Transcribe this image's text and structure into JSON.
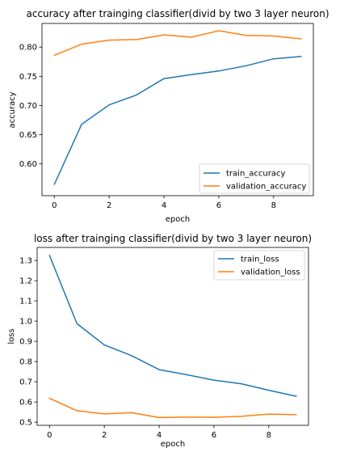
{
  "colors": {
    "series1": "#1f77b4",
    "series2": "#ff7f0e"
  },
  "chart_data": [
    {
      "type": "line",
      "title": "accuracy after trainging classifier(divid by two 3 layer neuron)",
      "xlabel": "epoch",
      "ylabel": "accuracy",
      "x": [
        0,
        1,
        2,
        3,
        4,
        5,
        6,
        7,
        8,
        9
      ],
      "xlim": [
        -0.45,
        9.45
      ],
      "ylim": [
        0.5455,
        0.8405
      ],
      "xticks": [
        0,
        2,
        4,
        6,
        8
      ],
      "yticks": [
        0.6,
        0.65,
        0.7,
        0.75,
        0.8
      ],
      "ytick_labels": [
        "0.60",
        "0.65",
        "0.70",
        "0.75",
        "0.80"
      ],
      "legend_loc": "lower-right",
      "grid": false,
      "series": [
        {
          "name": "train_accuracy",
          "color": "#1f77b4",
          "values": [
            0.565,
            0.668,
            0.701,
            0.718,
            0.746,
            0.753,
            0.759,
            0.768,
            0.78,
            0.784
          ]
        },
        {
          "name": "validation_accuracy",
          "color": "#ff7f0e",
          "values": [
            0.786,
            0.805,
            0.812,
            0.813,
            0.821,
            0.817,
            0.828,
            0.82,
            0.819,
            0.814
          ]
        }
      ]
    },
    {
      "type": "line",
      "title": "loss after trainging classifier(divid by two 3 layer neuron)",
      "xlabel": "epoch",
      "ylabel": "loss",
      "x": [
        0,
        1,
        2,
        3,
        4,
        5,
        6,
        7,
        8,
        9
      ],
      "xlim": [
        -0.45,
        9.45
      ],
      "ylim": [
        0.4845,
        1.3645
      ],
      "xticks": [
        0,
        2,
        4,
        6,
        8
      ],
      "yticks": [
        0.5,
        0.6,
        0.7,
        0.8,
        0.9,
        1.0,
        1.1,
        1.2,
        1.3
      ],
      "ytick_labels": [
        "0.5",
        "0.6",
        "0.7",
        "0.8",
        "0.9",
        "1.0",
        "1.1",
        "1.2",
        "1.3"
      ],
      "legend_loc": "upper-right",
      "grid": false,
      "series": [
        {
          "name": "train_loss",
          "color": "#1f77b4",
          "values": [
            1.325,
            0.988,
            0.882,
            0.829,
            0.76,
            0.735,
            0.708,
            0.69,
            0.658,
            0.628
          ]
        },
        {
          "name": "validation_loss",
          "color": "#ff7f0e",
          "values": [
            0.618,
            0.557,
            0.541,
            0.547,
            0.523,
            0.525,
            0.524,
            0.529,
            0.54,
            0.537
          ]
        }
      ]
    }
  ]
}
